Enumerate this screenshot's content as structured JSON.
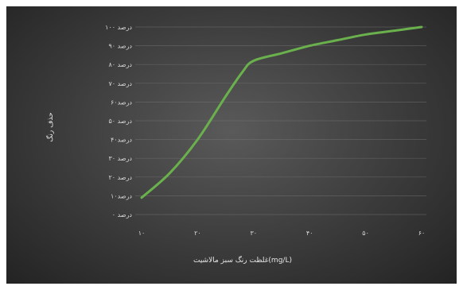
{
  "chart_data": {
    "type": "line",
    "title": "",
    "xlabel": "غلظت رنگ سبز مالاشیت(mg/L)",
    "ylabel": "حذف رنگ",
    "x": [
      10,
      20,
      30,
      40,
      50,
      60
    ],
    "x_tick_labels": [
      "۱۰",
      "۲۰",
      "۳۰",
      "۴۰",
      "۵۰",
      "۶۰"
    ],
    "xlim": [
      10,
      60
    ],
    "y_tick_labels": [
      "درصد ۰",
      "درصد۱۰",
      "درصد ۲۰",
      "درصد ۳۰",
      "درصد۴۰",
      "درصد ۵۰",
      "درصد۶۰",
      "درصد ۷۰",
      "درصد ۸۰",
      "درصد ۹۰",
      "درصد ۱۰۰"
    ],
    "ylim": [
      0,
      100
    ],
    "grid": true,
    "series": [
      {
        "color": "#6ab04c",
        "values": [
          {
            "x": 10,
            "y": 9
          },
          {
            "x": 15,
            "y": 22
          },
          {
            "x": 20,
            "y": 40
          },
          {
            "x": 25,
            "y": 63
          },
          {
            "x": 28,
            "y": 76
          },
          {
            "x": 30,
            "y": 82
          },
          {
            "x": 35,
            "y": 86
          },
          {
            "x": 40,
            "y": 90
          },
          {
            "x": 45,
            "y": 93
          },
          {
            "x": 50,
            "y": 96
          },
          {
            "x": 55,
            "y": 98
          },
          {
            "x": 60,
            "y": 100
          }
        ]
      }
    ]
  }
}
